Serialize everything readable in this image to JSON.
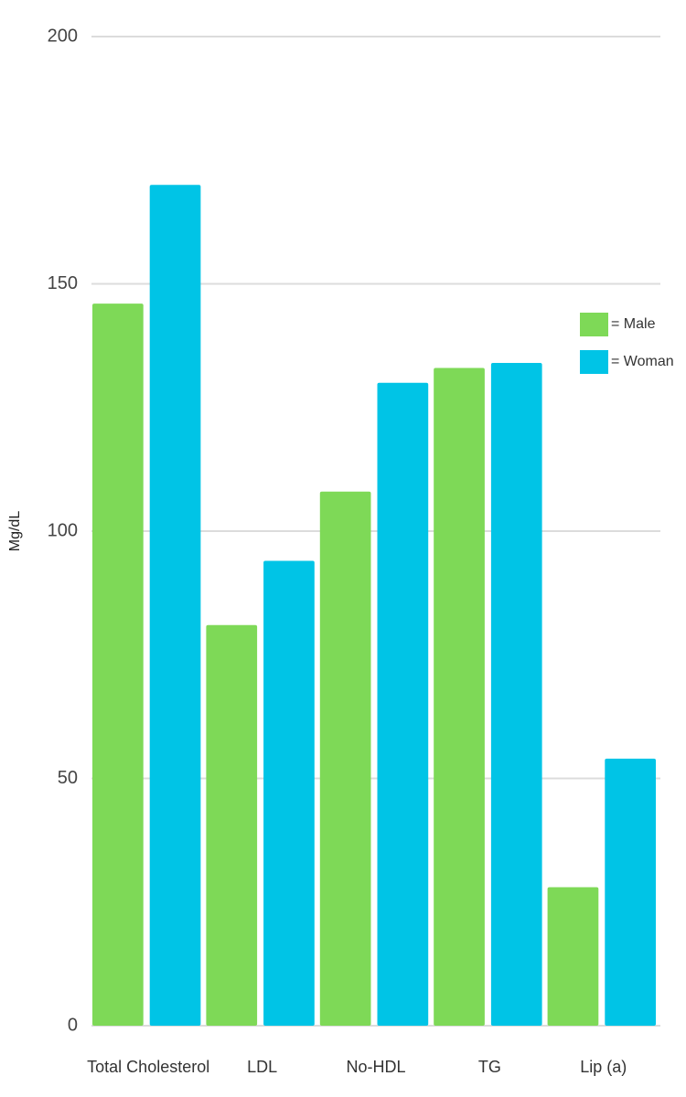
{
  "chart_data": {
    "type": "bar",
    "y_label": "Mg/dL",
    "categories": [
      "Total Cholesterol",
      "LDL",
      "No-HDL",
      "TG",
      "Lip (a)"
    ],
    "series": [
      {
        "name": "= Male",
        "color": "#7ed957",
        "values": [
          146,
          81,
          108,
          133,
          28
        ]
      },
      {
        "name": "= Woman",
        "color": "#00c4e6",
        "values": [
          170,
          94,
          130,
          134,
          54
        ]
      }
    ],
    "ylim": [
      0,
      200
    ],
    "yticks": [
      0,
      50,
      100,
      150,
      200
    ],
    "grid": true,
    "legend_position": "right"
  }
}
